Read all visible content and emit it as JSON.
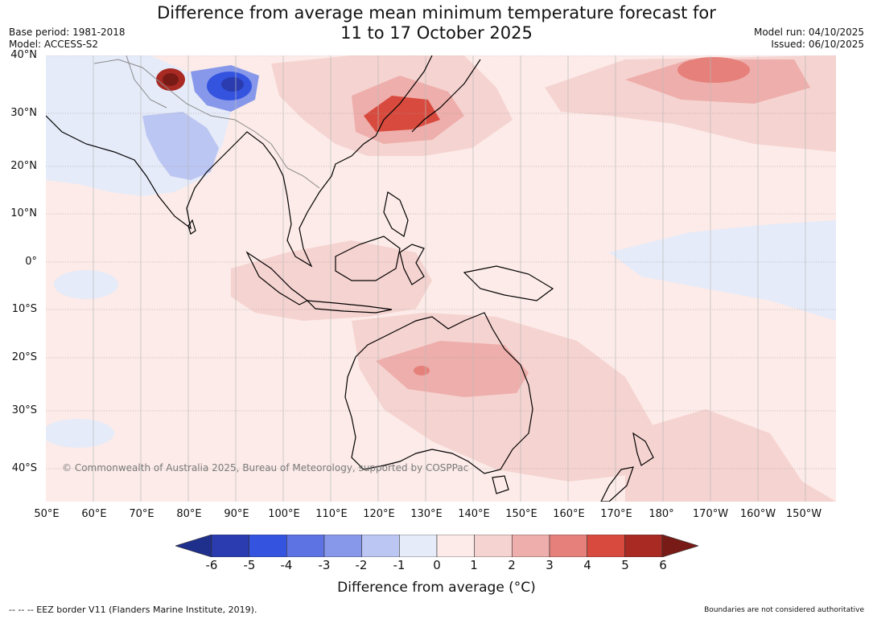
{
  "title_line1": "Difference from average mean minimum temperature forecast for",
  "title_line2": "11 to 17 October 2025",
  "base_period": "Base period: 1981-2018",
  "model": "Model: ACCESS-S2",
  "model_run": "Model run: 04/10/2025",
  "issued": "Issued: 06/10/2025",
  "latitude_labels": [
    "40°N",
    "30°N",
    "20°N",
    "10°N",
    "0°",
    "10°S",
    "20°S",
    "30°S",
    "40°S"
  ],
  "longitude_labels": [
    "50°E",
    "60°E",
    "70°E",
    "80°E",
    "90°E",
    "100°E",
    "110°E",
    "120°E",
    "130°E",
    "140°E",
    "150°E",
    "160°E",
    "170°E",
    "180°",
    "170°W",
    "160°W",
    "150°W"
  ],
  "copyright": "© Commonwealth of Australia 2025, Bureau of Meteorology, supported by COSPPac",
  "colorbar": {
    "ticks": [
      "-6",
      "-5",
      "-4",
      "-3",
      "-2",
      "-1",
      "0",
      "1",
      "2",
      "3",
      "4",
      "5",
      "6"
    ],
    "colors": [
      "#1f2f8c",
      "#2a3cb0",
      "#3454e0",
      "#5e73e3",
      "#8798ea",
      "#bcc6f2",
      "#e6ebf9",
      "#fcebe8",
      "#f5d3d0",
      "#eeaeab",
      "#e5807b",
      "#d94a3e",
      "#a82a23",
      "#781b16"
    ],
    "title": "Difference from average (°C)"
  },
  "eez_note": "--  --  -- EEZ border V11 (Flanders Marine Institute, 2019).",
  "boundary_note": "Boundaries are not considered authoritative"
}
